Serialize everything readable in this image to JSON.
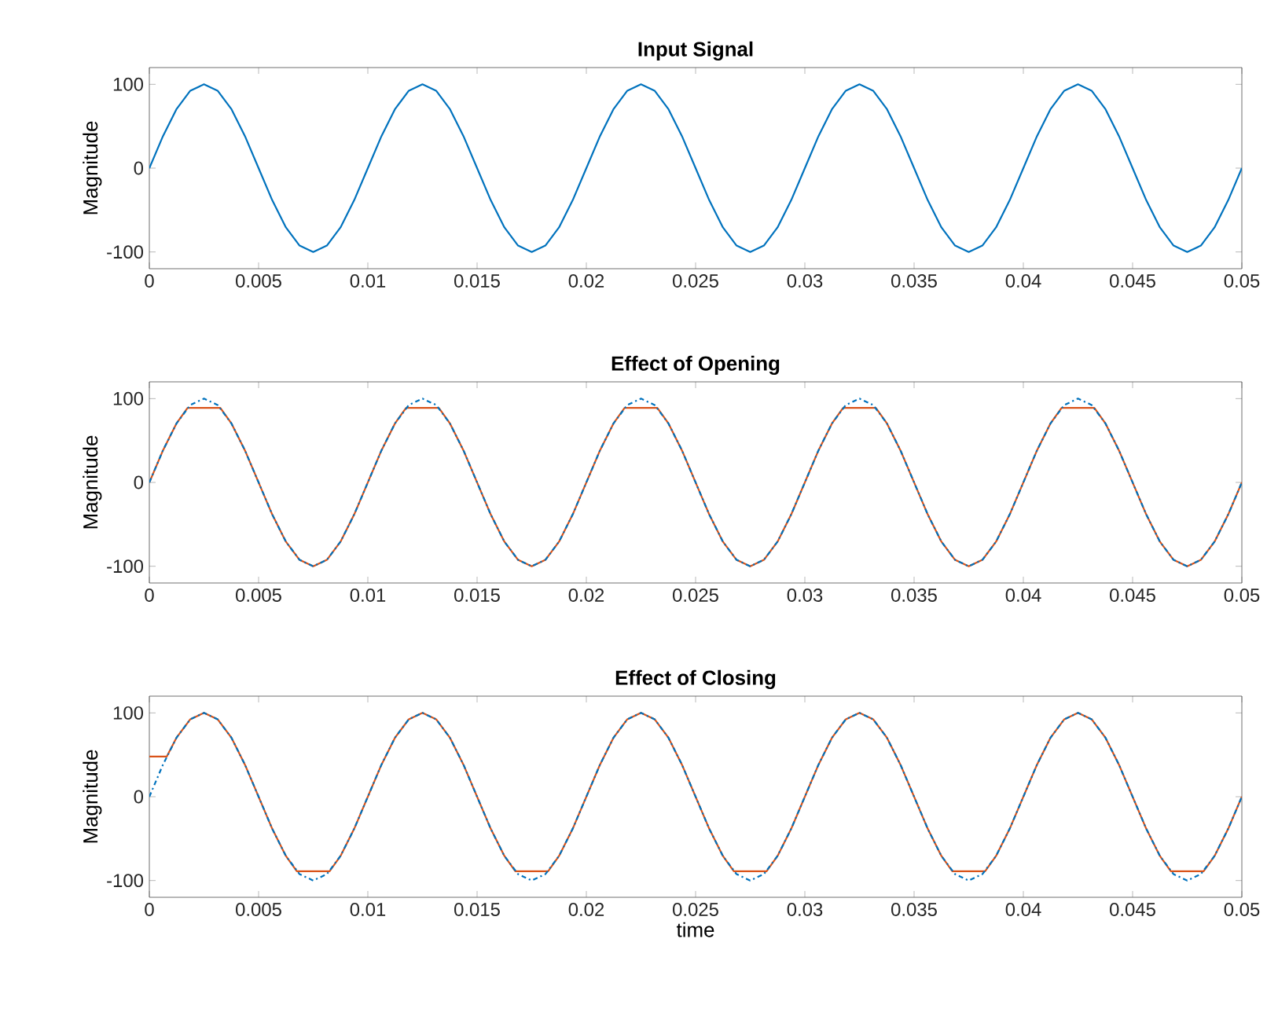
{
  "chart_data": [
    {
      "type": "line",
      "title": "Input Signal",
      "ylabel": "Magnitude",
      "xlim": [
        0,
        0.05
      ],
      "ylim": [
        -120,
        120
      ],
      "xticks": [
        0,
        0.005,
        0.01,
        0.015,
        0.02,
        0.025,
        0.03,
        0.035,
        0.04,
        0.045,
        0.05
      ],
      "yticks": [
        -100,
        0,
        100
      ],
      "x": [
        0,
        0.000625,
        0.00125,
        0.001875,
        0.0025,
        0.003125,
        0.00375,
        0.004375,
        0.005,
        0.005625,
        0.00625,
        0.006875,
        0.0075,
        0.008125,
        0.00875,
        0.009375,
        0.01,
        0.010625,
        0.01125,
        0.011875,
        0.0125,
        0.013125,
        0.01375,
        0.014375,
        0.015,
        0.015625,
        0.01625,
        0.016875,
        0.0175,
        0.018125,
        0.01875,
        0.019375,
        0.02,
        0.020625,
        0.02125,
        0.021875,
        0.0225,
        0.023125,
        0.02375,
        0.024375,
        0.025,
        0.025625,
        0.02625,
        0.026875,
        0.0275,
        0.028125,
        0.02875,
        0.029375,
        0.03,
        0.030625,
        0.03125,
        0.031875,
        0.0325,
        0.033125,
        0.03375,
        0.034375,
        0.035,
        0.035625,
        0.03625,
        0.036875,
        0.0375,
        0.038125,
        0.03875,
        0.039375,
        0.04,
        0.040625,
        0.04125,
        0.041875,
        0.0425,
        0.043125,
        0.04375,
        0.044375,
        0.045,
        0.045625,
        0.04625,
        0.046875,
        0.0475,
        0.048125,
        0.04875,
        0.049375,
        0.05
      ],
      "series": [
        {
          "color": "#0072bd",
          "line_style": "solid",
          "values": [
            0,
            38.3,
            70.7,
            92.4,
            100,
            92.4,
            70.7,
            38.3,
            0,
            -38.3,
            -70.7,
            -92.4,
            -100,
            -92.4,
            -70.7,
            -38.3,
            0,
            38.3,
            70.7,
            92.4,
            100,
            92.4,
            70.7,
            38.3,
            0,
            -38.3,
            -70.7,
            -92.4,
            -100,
            -92.4,
            -70.7,
            -38.3,
            0,
            38.3,
            70.7,
            92.4,
            100,
            92.4,
            70.7,
            38.3,
            0,
            -38.3,
            -70.7,
            -92.4,
            -100,
            -92.4,
            -70.7,
            -38.3,
            0,
            38.3,
            70.7,
            92.4,
            100,
            92.4,
            70.7,
            38.3,
            0,
            -38.3,
            -70.7,
            -92.4,
            -100,
            -92.4,
            -70.7,
            -38.3,
            0,
            38.3,
            70.7,
            92.4,
            100,
            92.4,
            70.7,
            38.3,
            0,
            -38.3,
            -70.7,
            -92.4,
            -100,
            -92.4,
            -70.7,
            -38.3,
            0
          ]
        }
      ]
    },
    {
      "type": "line",
      "title": "Effect of Opening",
      "ylabel": "Magnitude",
      "xlim": [
        0,
        0.05
      ],
      "ylim": [
        -120,
        120
      ],
      "xticks": [
        0,
        0.005,
        0.01,
        0.015,
        0.02,
        0.025,
        0.03,
        0.035,
        0.04,
        0.045,
        0.05
      ],
      "yticks": [
        -100,
        0,
        100
      ],
      "x": [
        0,
        0.000625,
        0.00125,
        0.001875,
        0.0025,
        0.003125,
        0.00375,
        0.004375,
        0.005,
        0.005625,
        0.00625,
        0.006875,
        0.0075,
        0.008125,
        0.00875,
        0.009375,
        0.01,
        0.010625,
        0.01125,
        0.011875,
        0.0125,
        0.013125,
        0.01375,
        0.014375,
        0.015,
        0.015625,
        0.01625,
        0.016875,
        0.0175,
        0.018125,
        0.01875,
        0.019375,
        0.02,
        0.020625,
        0.02125,
        0.021875,
        0.0225,
        0.023125,
        0.02375,
        0.024375,
        0.025,
        0.025625,
        0.02625,
        0.026875,
        0.0275,
        0.028125,
        0.02875,
        0.029375,
        0.03,
        0.030625,
        0.03125,
        0.031875,
        0.0325,
        0.033125,
        0.03375,
        0.034375,
        0.035,
        0.035625,
        0.03625,
        0.036875,
        0.0375,
        0.038125,
        0.03875,
        0.039375,
        0.04,
        0.040625,
        0.04125,
        0.041875,
        0.0425,
        0.043125,
        0.04375,
        0.044375,
        0.045,
        0.045625,
        0.04625,
        0.046875,
        0.0475,
        0.048125,
        0.04875,
        0.049375,
        0.05
      ],
      "series": [
        {
          "color": "#0072bd",
          "line_style": "dashdot",
          "values": [
            0,
            38.3,
            70.7,
            92.4,
            100,
            92.4,
            70.7,
            38.3,
            0,
            -38.3,
            -70.7,
            -92.4,
            -100,
            -92.4,
            -70.7,
            -38.3,
            0,
            38.3,
            70.7,
            92.4,
            100,
            92.4,
            70.7,
            38.3,
            0,
            -38.3,
            -70.7,
            -92.4,
            -100,
            -92.4,
            -70.7,
            -38.3,
            0,
            38.3,
            70.7,
            92.4,
            100,
            92.4,
            70.7,
            38.3,
            0,
            -38.3,
            -70.7,
            -92.4,
            -100,
            -92.4,
            -70.7,
            -38.3,
            0,
            38.3,
            70.7,
            92.4,
            100,
            92.4,
            70.7,
            38.3,
            0,
            -38.3,
            -70.7,
            -92.4,
            -100,
            -92.4,
            -70.7,
            -38.3,
            0,
            38.3,
            70.7,
            92.4,
            100,
            92.4,
            70.7,
            38.3,
            0,
            -38.3,
            -70.7,
            -92.4,
            -100,
            -92.4,
            -70.7,
            -38.3,
            0
          ]
        },
        {
          "color": "#d95319",
          "line_style": "solid",
          "x": [
            0,
            0.000625,
            0.00125,
            0.00175,
            0.00325,
            0.00375,
            0.004375,
            0.005,
            0.005625,
            0.00625,
            0.006875,
            0.0075,
            0.008125,
            0.00875,
            0.009375,
            0.01,
            0.010625,
            0.01125,
            0.01175,
            0.01325,
            0.01375,
            0.014375,
            0.015,
            0.015625,
            0.01625,
            0.016875,
            0.0175,
            0.018125,
            0.01875,
            0.019375,
            0.02,
            0.020625,
            0.02125,
            0.02175,
            0.02325,
            0.02375,
            0.024375,
            0.025,
            0.025625,
            0.02625,
            0.026875,
            0.0275,
            0.028125,
            0.02875,
            0.029375,
            0.03,
            0.030625,
            0.03125,
            0.03175,
            0.03325,
            0.03375,
            0.034375,
            0.035,
            0.035625,
            0.03625,
            0.036875,
            0.0375,
            0.038125,
            0.03875,
            0.039375,
            0.04,
            0.040625,
            0.04125,
            0.04175,
            0.04325,
            0.04375,
            0.044375,
            0.045,
            0.045625,
            0.04625,
            0.046875,
            0.0475,
            0.048125,
            0.04875,
            0.049375,
            0.05
          ],
          "values": [
            0,
            38.3,
            70.7,
            89,
            89,
            70.7,
            38.3,
            0,
            -38.3,
            -70.7,
            -92.4,
            -100,
            -92.4,
            -70.7,
            -38.3,
            0,
            38.3,
            70.7,
            89,
            89,
            70.7,
            38.3,
            0,
            -38.3,
            -70.7,
            -92.4,
            -100,
            -92.4,
            -70.7,
            -38.3,
            0,
            38.3,
            70.7,
            89,
            89,
            70.7,
            38.3,
            0,
            -38.3,
            -70.7,
            -92.4,
            -100,
            -92.4,
            -70.7,
            -38.3,
            0,
            38.3,
            70.7,
            89,
            89,
            70.7,
            38.3,
            0,
            -38.3,
            -70.7,
            -92.4,
            -100,
            -92.4,
            -70.7,
            -38.3,
            0,
            38.3,
            70.7,
            89,
            89,
            70.7,
            38.3,
            0,
            -38.3,
            -70.7,
            -92.4,
            -100,
            -92.4,
            -70.7,
            -38.3,
            0
          ]
        }
      ]
    },
    {
      "type": "line",
      "title": "Effect of Closing",
      "xlabel": "time",
      "ylabel": "Magnitude",
      "xlim": [
        0,
        0.05
      ],
      "ylim": [
        -120,
        120
      ],
      "xticks": [
        0,
        0.005,
        0.01,
        0.015,
        0.02,
        0.025,
        0.03,
        0.035,
        0.04,
        0.045,
        0.05
      ],
      "yticks": [
        -100,
        0,
        100
      ],
      "x": [
        0,
        0.000625,
        0.00125,
        0.001875,
        0.0025,
        0.003125,
        0.00375,
        0.004375,
        0.005,
        0.005625,
        0.00625,
        0.006875,
        0.0075,
        0.008125,
        0.00875,
        0.009375,
        0.01,
        0.010625,
        0.01125,
        0.011875,
        0.0125,
        0.013125,
        0.01375,
        0.014375,
        0.015,
        0.015625,
        0.01625,
        0.016875,
        0.0175,
        0.018125,
        0.01875,
        0.019375,
        0.02,
        0.020625,
        0.02125,
        0.021875,
        0.0225,
        0.023125,
        0.02375,
        0.024375,
        0.025,
        0.025625,
        0.02625,
        0.026875,
        0.0275,
        0.028125,
        0.02875,
        0.029375,
        0.03,
        0.030625,
        0.03125,
        0.031875,
        0.0325,
        0.033125,
        0.03375,
        0.034375,
        0.035,
        0.035625,
        0.03625,
        0.036875,
        0.0375,
        0.038125,
        0.03875,
        0.039375,
        0.04,
        0.040625,
        0.04125,
        0.041875,
        0.0425,
        0.043125,
        0.04375,
        0.044375,
        0.045,
        0.045625,
        0.04625,
        0.046875,
        0.0475,
        0.048125,
        0.04875,
        0.049375,
        0.05
      ],
      "series": [
        {
          "color": "#0072bd",
          "line_style": "dashdot",
          "values": [
            0,
            38.3,
            70.7,
            92.4,
            100,
            92.4,
            70.7,
            38.3,
            0,
            -38.3,
            -70.7,
            -92.4,
            -100,
            -92.4,
            -70.7,
            -38.3,
            0,
            38.3,
            70.7,
            92.4,
            100,
            92.4,
            70.7,
            38.3,
            0,
            -38.3,
            -70.7,
            -92.4,
            -100,
            -92.4,
            -70.7,
            -38.3,
            0,
            38.3,
            70.7,
            92.4,
            100,
            92.4,
            70.7,
            38.3,
            0,
            -38.3,
            -70.7,
            -92.4,
            -100,
            -92.4,
            -70.7,
            -38.3,
            0,
            38.3,
            70.7,
            92.4,
            100,
            92.4,
            70.7,
            38.3,
            0,
            -38.3,
            -70.7,
            -92.4,
            -100,
            -92.4,
            -70.7,
            -38.3,
            0,
            38.3,
            70.7,
            92.4,
            100,
            92.4,
            70.7,
            38.3,
            0,
            -38.3,
            -70.7,
            -92.4,
            -100,
            -92.4,
            -70.7,
            -38.3,
            0
          ]
        },
        {
          "color": "#d95319",
          "line_style": "solid",
          "x": [
            0,
            0.0008,
            0.00125,
            0.001875,
            0.0025,
            0.003125,
            0.00375,
            0.004375,
            0.005,
            0.005625,
            0.00625,
            0.00675,
            0.00825,
            0.00875,
            0.009375,
            0.01,
            0.010625,
            0.01125,
            0.011875,
            0.0125,
            0.013125,
            0.01375,
            0.014375,
            0.015,
            0.015625,
            0.01625,
            0.01675,
            0.01825,
            0.01875,
            0.019375,
            0.02,
            0.020625,
            0.02125,
            0.021875,
            0.0225,
            0.023125,
            0.02375,
            0.024375,
            0.025,
            0.025625,
            0.02625,
            0.02675,
            0.02825,
            0.02875,
            0.029375,
            0.03,
            0.030625,
            0.03125,
            0.031875,
            0.0325,
            0.033125,
            0.03375,
            0.034375,
            0.035,
            0.035625,
            0.03625,
            0.03675,
            0.03825,
            0.03875,
            0.039375,
            0.04,
            0.040625,
            0.04125,
            0.041875,
            0.0425,
            0.043125,
            0.04375,
            0.044375,
            0.045,
            0.045625,
            0.04625,
            0.04675,
            0.04825,
            0.04875,
            0.049375,
            0.05
          ],
          "values": [
            48,
            48,
            70.7,
            92.4,
            100,
            92.4,
            70.7,
            38.3,
            0,
            -38.3,
            -70.7,
            -89,
            -89,
            -70.7,
            -38.3,
            0,
            38.3,
            70.7,
            92.4,
            100,
            92.4,
            70.7,
            38.3,
            0,
            -38.3,
            -70.7,
            -89,
            -89,
            -70.7,
            -38.3,
            0,
            38.3,
            70.7,
            92.4,
            100,
            92.4,
            70.7,
            38.3,
            0,
            -38.3,
            -70.7,
            -89,
            -89,
            -70.7,
            -38.3,
            0,
            38.3,
            70.7,
            92.4,
            100,
            92.4,
            70.7,
            38.3,
            0,
            -38.3,
            -70.7,
            -89,
            -89,
            -70.7,
            -38.3,
            0,
            38.3,
            70.7,
            92.4,
            100,
            92.4,
            70.7,
            38.3,
            0,
            -38.3,
            -70.7,
            -89,
            -89,
            -70.7,
            -38.3,
            0
          ]
        }
      ]
    }
  ]
}
